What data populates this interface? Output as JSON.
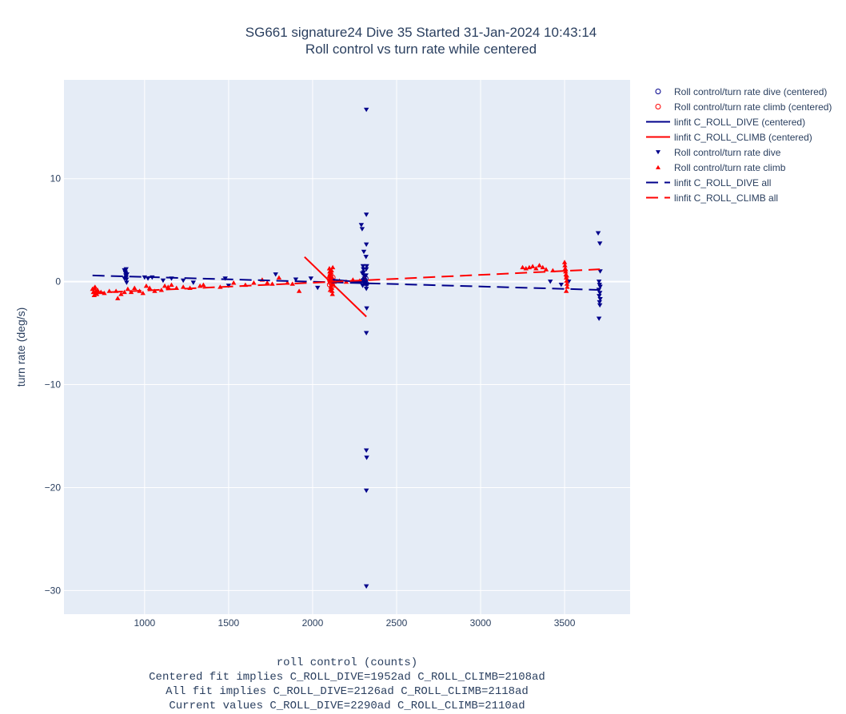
{
  "title": {
    "line1": "SG661 signature24 Dive 35 Started 31-Jan-2024 10:43:14",
    "line2": "Roll control vs turn rate while centered"
  },
  "xlabel": {
    "line1": "roll control (counts)",
    "line2": "Centered fit implies C_ROLL_DIVE=1952ad C_ROLL_CLIMB=2108ad",
    "line3": "All fit implies C_ROLL_DIVE=2126ad C_ROLL_CLIMB=2118ad",
    "line4": "Current values C_ROLL_DIVE=2290ad C_ROLL_CLIMB=2110ad"
  },
  "legend": [
    {
      "label": "Roll control/turn rate dive (centered)",
      "symbol": "circle-open",
      "color": "#00008b"
    },
    {
      "label": "Roll control/turn rate climb (centered)",
      "symbol": "circle-open",
      "color": "#ff0000"
    },
    {
      "label": "linfit C_ROLL_DIVE (centered)",
      "symbol": "line-solid",
      "color": "#00008b"
    },
    {
      "label": "linfit C_ROLL_CLIMB (centered)",
      "symbol": "line-solid",
      "color": "#ff0000"
    },
    {
      "label": "Roll control/turn rate dive",
      "symbol": "triangle-down",
      "color": "#00008b"
    },
    {
      "label": "Roll control/turn rate climb",
      "symbol": "triangle-up",
      "color": "#ff0000"
    },
    {
      "label": "linfit C_ROLL_DIVE all",
      "symbol": "line-dash",
      "color": "#00008b"
    },
    {
      "label": "linfit C_ROLL_CLIMB all",
      "symbol": "line-dash",
      "color": "#ff0000"
    }
  ],
  "chart_data": {
    "type": "scatter",
    "ylabel": "turn rate (deg/s)",
    "xlim": [
      520,
      3890
    ],
    "ylim": [
      -32.3,
      19.6
    ],
    "x_ticks": [
      1000,
      1500,
      2000,
      2500,
      3000,
      3500
    ],
    "y_ticks": [
      10,
      0,
      -10,
      -20,
      -30
    ],
    "y_tick_labels": [
      "10",
      "0",
      "−10",
      "−20",
      "−30"
    ],
    "grid": true,
    "legend_position": "right",
    "colors": {
      "dive": "#00008b",
      "climb": "#ff0000",
      "plot_bg": "#e5ecf6",
      "grid": "#ffffff"
    },
    "series": [
      {
        "name": "Roll control/turn rate dive",
        "marker": "triangle-down",
        "color": "#00008b",
        "points": [
          [
            880,
            1.1
          ],
          [
            885,
            0.9
          ],
          [
            888,
            0.6
          ],
          [
            890,
            0.4
          ],
          [
            892,
            0.2
          ],
          [
            895,
            0.7
          ],
          [
            880,
            0.3
          ],
          [
            890,
            1.2
          ],
          [
            893,
            -0.1
          ],
          [
            887,
            0.8
          ],
          [
            1000,
            0.4
          ],
          [
            1020,
            0.3
          ],
          [
            1045,
            0.4
          ],
          [
            1110,
            0.1
          ],
          [
            1160,
            0.3
          ],
          [
            1230,
            0.1
          ],
          [
            1290,
            -0.1
          ],
          [
            1480,
            0.3
          ],
          [
            1500,
            -0.4
          ],
          [
            1780,
            0.7
          ],
          [
            1900,
            0.2
          ],
          [
            1990,
            0.3
          ],
          [
            2030,
            -0.6
          ],
          [
            2290,
            5.5
          ],
          [
            2295,
            5.1
          ],
          [
            2300,
            1.5
          ],
          [
            2302,
            1.2
          ],
          [
            2304,
            0.9
          ],
          [
            2306,
            0.6
          ],
          [
            2308,
            0.3
          ],
          [
            2310,
            0.0
          ],
          [
            2312,
            -0.2
          ],
          [
            2298,
            -0.4
          ],
          [
            2296,
            0.8
          ],
          [
            2305,
            2.9
          ],
          [
            2320,
            16.7
          ],
          [
            2320,
            6.5
          ],
          [
            2320,
            3.6
          ],
          [
            2318,
            2.4
          ],
          [
            2322,
            1.5
          ],
          [
            2320,
            1.2
          ],
          [
            2318,
            0.6
          ],
          [
            2322,
            -0.3
          ],
          [
            2320,
            -0.7
          ],
          [
            2322,
            -2.6
          ],
          [
            2320,
            -5.0
          ],
          [
            2320,
            -16.4
          ],
          [
            2322,
            -17.1
          ],
          [
            2320,
            -20.3
          ],
          [
            2320,
            -29.6
          ],
          [
            3415,
            0.0
          ],
          [
            3480,
            -0.3
          ],
          [
            3525,
            0.0
          ],
          [
            3700,
            4.7
          ],
          [
            3710,
            3.7
          ],
          [
            3712,
            1.0
          ],
          [
            3705,
            0.0
          ],
          [
            3708,
            -0.3
          ],
          [
            3712,
            -0.5
          ],
          [
            3704,
            -0.8
          ],
          [
            3710,
            -1.1
          ],
          [
            3706,
            -1.4
          ],
          [
            3712,
            -1.7
          ],
          [
            3708,
            -2.0
          ],
          [
            3710,
            -2.3
          ],
          [
            3705,
            -3.6
          ]
        ]
      },
      {
        "name": "Roll control/turn rate climb",
        "marker": "triangle-up",
        "color": "#ff0000",
        "points": [
          [
            690,
            -0.7
          ],
          [
            695,
            -1.0
          ],
          [
            700,
            -1.3
          ],
          [
            705,
            -0.5
          ],
          [
            710,
            -0.9
          ],
          [
            715,
            -1.2
          ],
          [
            720,
            -0.8
          ],
          [
            700,
            -0.6
          ],
          [
            712,
            -1.1
          ],
          [
            725,
            -1.0
          ],
          [
            740,
            -1.0
          ],
          [
            760,
            -1.1
          ],
          [
            790,
            -0.9
          ],
          [
            830,
            -0.9
          ],
          [
            840,
            -1.6
          ],
          [
            860,
            -1.2
          ],
          [
            880,
            -1.0
          ],
          [
            900,
            -0.7
          ],
          [
            920,
            -1.0
          ],
          [
            940,
            -0.6
          ],
          [
            970,
            -0.9
          ],
          [
            990,
            -1.1
          ],
          [
            1010,
            -0.4
          ],
          [
            1030,
            -0.6
          ],
          [
            1060,
            -0.9
          ],
          [
            1100,
            -0.8
          ],
          [
            1120,
            -0.4
          ],
          [
            1140,
            -0.5
          ],
          [
            1160,
            -0.3
          ],
          [
            1190,
            -0.6
          ],
          [
            1230,
            -0.5
          ],
          [
            1270,
            -0.6
          ],
          [
            1330,
            -0.4
          ],
          [
            1350,
            -0.3
          ],
          [
            1450,
            -0.5
          ],
          [
            1530,
            -0.1
          ],
          [
            1600,
            -0.3
          ],
          [
            1650,
            -0.1
          ],
          [
            1700,
            0.2
          ],
          [
            1730,
            -0.1
          ],
          [
            1760,
            -0.2
          ],
          [
            1800,
            0.4
          ],
          [
            1850,
            -0.1
          ],
          [
            1880,
            -0.2
          ],
          [
            1920,
            -0.9
          ],
          [
            2100,
            1.3
          ],
          [
            2102,
            1.0
          ],
          [
            2104,
            0.8
          ],
          [
            2106,
            0.5
          ],
          [
            2108,
            0.2
          ],
          [
            2110,
            0.0
          ],
          [
            2112,
            -0.3
          ],
          [
            2114,
            -0.6
          ],
          [
            2116,
            -0.9
          ],
          [
            2118,
            -1.2
          ],
          [
            2120,
            1.4
          ],
          [
            2103,
            0.6
          ],
          [
            2107,
            0.3
          ],
          [
            2111,
            0.9
          ],
          [
            2115,
            -0.2
          ],
          [
            2109,
            -0.5
          ],
          [
            2113,
            1.1
          ],
          [
            2117,
            0.4
          ],
          [
            2105,
            -0.8
          ],
          [
            2119,
            0.1
          ],
          [
            2130,
            0.0
          ],
          [
            2160,
            0.1
          ],
          [
            2200,
            0.0
          ],
          [
            2240,
            0.2
          ],
          [
            2280,
            0.1
          ],
          [
            2310,
            0.3
          ],
          [
            3250,
            1.4
          ],
          [
            3270,
            1.3
          ],
          [
            3290,
            1.4
          ],
          [
            3310,
            1.5
          ],
          [
            3330,
            1.3
          ],
          [
            3350,
            1.6
          ],
          [
            3370,
            1.4
          ],
          [
            3390,
            1.2
          ],
          [
            3430,
            1.1
          ],
          [
            3500,
            1.9
          ],
          [
            3502,
            1.6
          ],
          [
            3504,
            1.3
          ],
          [
            3506,
            1.0
          ],
          [
            3508,
            0.7
          ],
          [
            3510,
            0.4
          ],
          [
            3512,
            0.1
          ],
          [
            3514,
            -0.2
          ],
          [
            3516,
            -0.5
          ],
          [
            3510,
            -0.9
          ],
          [
            3506,
            1.2
          ],
          [
            3513,
            0.6
          ]
        ]
      },
      {
        "name": "Roll control/turn rate dive (centered)",
        "marker": "circle-open",
        "color": "#00008b",
        "points": [
          [
            2300,
            0.1
          ],
          [
            2304,
            -0.1
          ],
          [
            2308,
            0.2
          ],
          [
            2312,
            0.0
          ],
          [
            2316,
            0.3
          ],
          [
            2320,
            -0.2
          ],
          [
            2296,
            0.0
          ],
          [
            2310,
            0.1
          ]
        ]
      },
      {
        "name": "Roll control/turn rate climb (centered)",
        "marker": "circle-open",
        "color": "#ff0000",
        "points": [
          [
            2100,
            0.3
          ],
          [
            2104,
            0.1
          ],
          [
            2108,
            -0.1
          ],
          [
            2112,
            0.2
          ],
          [
            2116,
            0.0
          ],
          [
            2120,
            0.4
          ],
          [
            2102,
            -0.3
          ],
          [
            2114,
            -0.2
          ],
          [
            2106,
            0.5
          ],
          [
            2118,
            -0.4
          ]
        ]
      },
      {
        "name": "linfit C_ROLL_DIVE (centered)",
        "line": "solid",
        "color": "#00008b",
        "points": [
          [
            2120,
            0.2
          ],
          [
            2320,
            -0.1
          ]
        ]
      },
      {
        "name": "linfit C_ROLL_CLIMB (centered)",
        "line": "solid",
        "color": "#ff0000",
        "points": [
          [
            1952,
            2.4
          ],
          [
            2320,
            -3.4
          ]
        ]
      },
      {
        "name": "linfit C_ROLL_DIVE all",
        "line": "dash",
        "color": "#00008b",
        "points": [
          [
            690,
            0.6
          ],
          [
            3710,
            -0.8
          ]
        ]
      },
      {
        "name": "linfit C_ROLL_CLIMB all",
        "line": "dash",
        "color": "#ff0000",
        "points": [
          [
            690,
            -1.1
          ],
          [
            3710,
            1.2
          ]
        ]
      }
    ]
  }
}
